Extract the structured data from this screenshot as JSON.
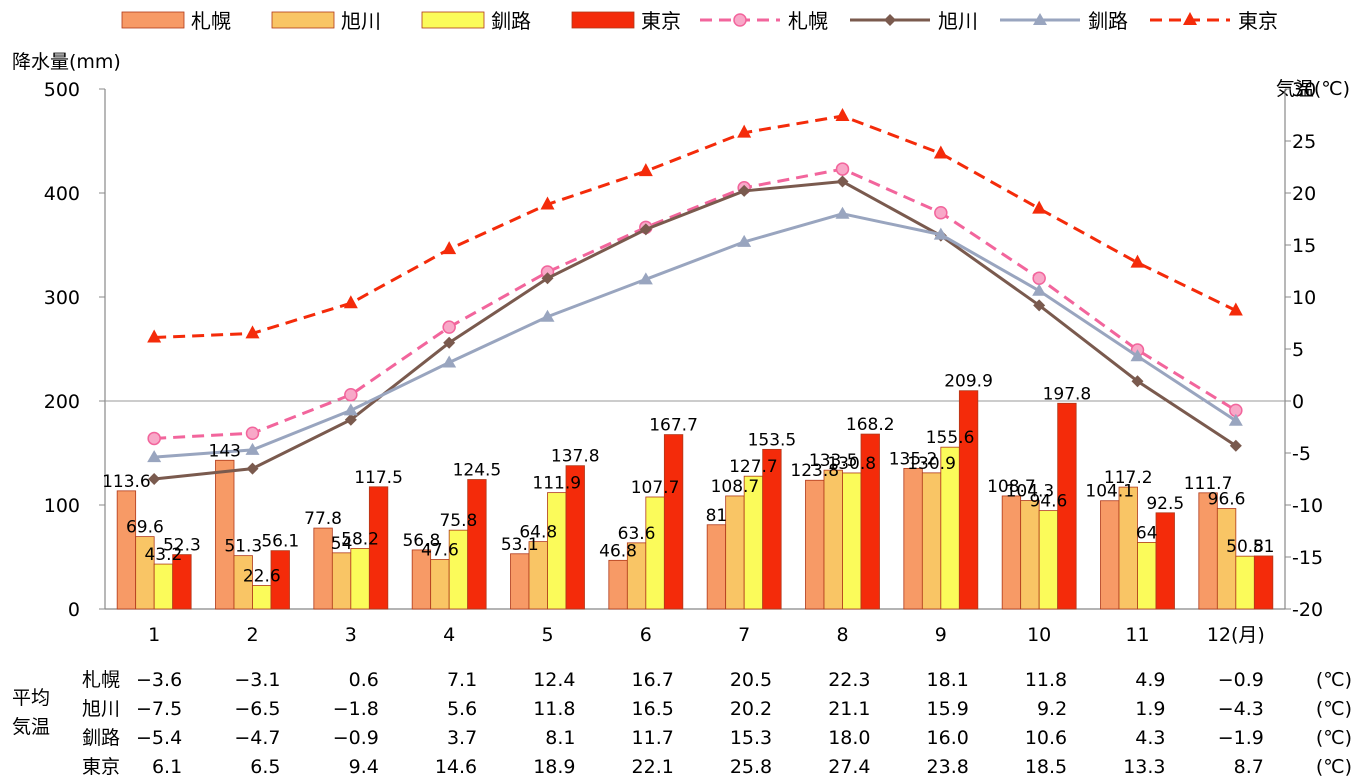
{
  "chart_data": {
    "type": "bar+line",
    "categories": [
      "1",
      "2",
      "3",
      "4",
      "5",
      "6",
      "7",
      "8",
      "9",
      "10",
      "11",
      "12"
    ],
    "month_unit": "(月)",
    "left_axis": {
      "label": "降水量(mm)",
      "min": 0,
      "max": 500,
      "ticks": [
        "0",
        "100",
        "200",
        "300",
        "400",
        "500"
      ]
    },
    "right_axis": {
      "label": "気温(℃)",
      "min": -20,
      "max": 30,
      "ticks": [
        "-20",
        "-15",
        "-10",
        "-5",
        "0",
        "5",
        "10",
        "15",
        "20",
        "25",
        "30"
      ]
    },
    "bar_series": [
      {
        "name": "札幌",
        "color": "#f79a66",
        "values": [
          113.6,
          143,
          77.8,
          56.8,
          53.1,
          46.8,
          81,
          123.8,
          135.2,
          108.7,
          104.1,
          111.7
        ],
        "labels": [
          "113.6",
          "143",
          "77.8",
          "56.8",
          "53.1",
          "46.8",
          "81",
          "123.8",
          "135.2",
          "108.7",
          "104.1",
          "111.7"
        ]
      },
      {
        "name": "旭川",
        "color": "#f9c565",
        "values": [
          69.6,
          51.3,
          54,
          47.6,
          64.8,
          63.6,
          108.7,
          133.5,
          130.9,
          104.3,
          117.2,
          96.6
        ],
        "labels": [
          "69.6",
          "51.3",
          "54",
          "47.6",
          "64.8",
          "63.6",
          "108.7",
          "133.5",
          "130.9",
          "104.3",
          "117.2",
          "96.6"
        ]
      },
      {
        "name": "釧路",
        "color": "#fbfb5a",
        "values": [
          43.2,
          22.6,
          58.2,
          75.8,
          111.9,
          107.7,
          127.7,
          130.8,
          155.6,
          94.6,
          64,
          50.8
        ],
        "labels": [
          "43.2",
          "22.6",
          "58.2",
          "75.8",
          "111.9",
          "107.7",
          "127.7",
          "130.8",
          "155.6",
          "94.6",
          "64",
          "50.8"
        ]
      },
      {
        "name": "東京",
        "color": "#f42b0a",
        "values": [
          52.3,
          56.1,
          117.5,
          124.5,
          137.8,
          167.7,
          153.5,
          168.2,
          209.9,
          197.8,
          92.5,
          51
        ],
        "labels": [
          "52.3",
          "56.1",
          "117.5",
          "124.5",
          "137.8",
          "167.7",
          "153.5",
          "168.2",
          "209.9",
          "197.8",
          "92.5",
          "51"
        ]
      }
    ],
    "line_series": [
      {
        "name": "札幌",
        "color": "#f2659c",
        "dash": "dashed",
        "marker": "circle",
        "values": [
          -3.6,
          -3.1,
          0.6,
          7.1,
          12.4,
          16.7,
          20.5,
          22.3,
          18.1,
          11.8,
          4.9,
          -0.9
        ]
      },
      {
        "name": "旭川",
        "color": "#7a5a4e",
        "dash": "solid",
        "marker": "diamond",
        "values": [
          -7.5,
          -6.5,
          -1.8,
          5.6,
          11.8,
          16.5,
          20.2,
          21.1,
          15.9,
          9.2,
          1.9,
          -4.3
        ]
      },
      {
        "name": "釧路",
        "color": "#99a5bf",
        "dash": "solid",
        "marker": "triangle",
        "values": [
          -5.4,
          -4.7,
          -0.9,
          3.7,
          8.1,
          11.7,
          15.3,
          18.0,
          16.0,
          10.6,
          4.3,
          -1.9
        ]
      },
      {
        "name": "東京",
        "color": "#f42b0a",
        "dash": "dashed",
        "marker": "triangle-filled",
        "values": [
          6.1,
          6.5,
          9.4,
          14.6,
          18.9,
          22.1,
          25.8,
          27.4,
          23.8,
          18.5,
          13.3,
          8.7
        ]
      }
    ],
    "legend_position": "top",
    "grid": false
  },
  "table": {
    "group_label_1": "平均",
    "group_label_2": "気温",
    "unit": "(℃)",
    "rows": [
      {
        "name": "札幌",
        "values": [
          "−3.6",
          "−3.1",
          "0.6",
          "7.1",
          "12.4",
          "16.7",
          "20.5",
          "22.3",
          "18.1",
          "11.8",
          "4.9",
          "−0.9"
        ]
      },
      {
        "name": "旭川",
        "values": [
          "−7.5",
          "−6.5",
          "−1.8",
          "5.6",
          "11.8",
          "16.5",
          "20.2",
          "21.1",
          "15.9",
          "9.2",
          "1.9",
          "−4.3"
        ]
      },
      {
        "name": "釧路",
        "values": [
          "−5.4",
          "−4.7",
          "−0.9",
          "3.7",
          "8.1",
          "11.7",
          "15.3",
          "18.0",
          "16.0",
          "10.6",
          "4.3",
          "−1.9"
        ]
      },
      {
        "name": "東京",
        "values": [
          "6.1",
          "6.5",
          "9.4",
          "14.6",
          "18.9",
          "22.1",
          "25.8",
          "27.4",
          "23.8",
          "18.5",
          "13.3",
          "8.7"
        ]
      }
    ]
  }
}
